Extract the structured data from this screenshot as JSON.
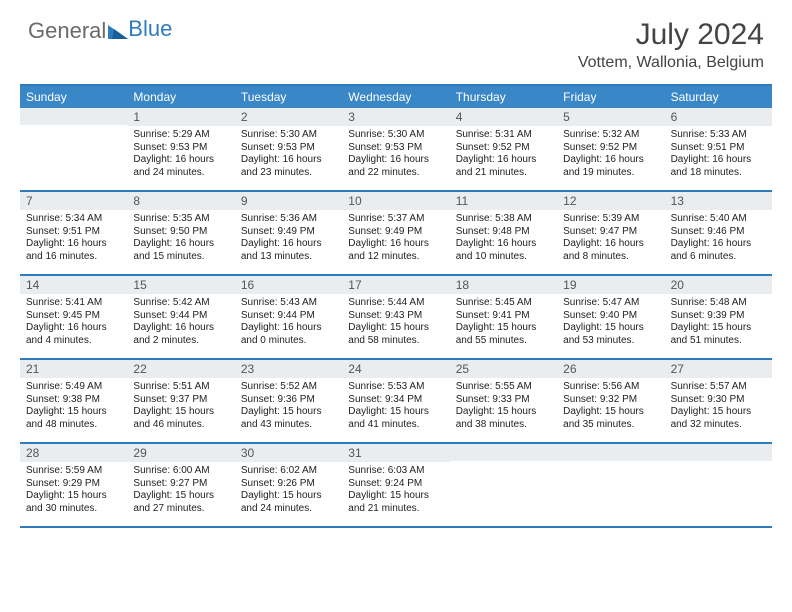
{
  "logo": {
    "text1": "General",
    "text2": "Blue"
  },
  "title": "July 2024",
  "location": "Vottem, Wallonia, Belgium",
  "colors": {
    "header_bg": "#3a87c7",
    "border": "#2e7cc0",
    "daynum_bg": "#e9edf0",
    "logo_gray": "#6a6a6a",
    "logo_blue": "#2e7cc0"
  },
  "day_labels": [
    "Sunday",
    "Monday",
    "Tuesday",
    "Wednesday",
    "Thursday",
    "Friday",
    "Saturday"
  ],
  "weeks": [
    [
      null,
      {
        "n": "1",
        "sr": "5:29 AM",
        "ss": "9:53 PM",
        "dl": "16 hours and 24 minutes."
      },
      {
        "n": "2",
        "sr": "5:30 AM",
        "ss": "9:53 PM",
        "dl": "16 hours and 23 minutes."
      },
      {
        "n": "3",
        "sr": "5:30 AM",
        "ss": "9:53 PM",
        "dl": "16 hours and 22 minutes."
      },
      {
        "n": "4",
        "sr": "5:31 AM",
        "ss": "9:52 PM",
        "dl": "16 hours and 21 minutes."
      },
      {
        "n": "5",
        "sr": "5:32 AM",
        "ss": "9:52 PM",
        "dl": "16 hours and 19 minutes."
      },
      {
        "n": "6",
        "sr": "5:33 AM",
        "ss": "9:51 PM",
        "dl": "16 hours and 18 minutes."
      }
    ],
    [
      {
        "n": "7",
        "sr": "5:34 AM",
        "ss": "9:51 PM",
        "dl": "16 hours and 16 minutes."
      },
      {
        "n": "8",
        "sr": "5:35 AM",
        "ss": "9:50 PM",
        "dl": "16 hours and 15 minutes."
      },
      {
        "n": "9",
        "sr": "5:36 AM",
        "ss": "9:49 PM",
        "dl": "16 hours and 13 minutes."
      },
      {
        "n": "10",
        "sr": "5:37 AM",
        "ss": "9:49 PM",
        "dl": "16 hours and 12 minutes."
      },
      {
        "n": "11",
        "sr": "5:38 AM",
        "ss": "9:48 PM",
        "dl": "16 hours and 10 minutes."
      },
      {
        "n": "12",
        "sr": "5:39 AM",
        "ss": "9:47 PM",
        "dl": "16 hours and 8 minutes."
      },
      {
        "n": "13",
        "sr": "5:40 AM",
        "ss": "9:46 PM",
        "dl": "16 hours and 6 minutes."
      }
    ],
    [
      {
        "n": "14",
        "sr": "5:41 AM",
        "ss": "9:45 PM",
        "dl": "16 hours and 4 minutes."
      },
      {
        "n": "15",
        "sr": "5:42 AM",
        "ss": "9:44 PM",
        "dl": "16 hours and 2 minutes."
      },
      {
        "n": "16",
        "sr": "5:43 AM",
        "ss": "9:44 PM",
        "dl": "16 hours and 0 minutes."
      },
      {
        "n": "17",
        "sr": "5:44 AM",
        "ss": "9:43 PM",
        "dl": "15 hours and 58 minutes."
      },
      {
        "n": "18",
        "sr": "5:45 AM",
        "ss": "9:41 PM",
        "dl": "15 hours and 55 minutes."
      },
      {
        "n": "19",
        "sr": "5:47 AM",
        "ss": "9:40 PM",
        "dl": "15 hours and 53 minutes."
      },
      {
        "n": "20",
        "sr": "5:48 AM",
        "ss": "9:39 PM",
        "dl": "15 hours and 51 minutes."
      }
    ],
    [
      {
        "n": "21",
        "sr": "5:49 AM",
        "ss": "9:38 PM",
        "dl": "15 hours and 48 minutes."
      },
      {
        "n": "22",
        "sr": "5:51 AM",
        "ss": "9:37 PM",
        "dl": "15 hours and 46 minutes."
      },
      {
        "n": "23",
        "sr": "5:52 AM",
        "ss": "9:36 PM",
        "dl": "15 hours and 43 minutes."
      },
      {
        "n": "24",
        "sr": "5:53 AM",
        "ss": "9:34 PM",
        "dl": "15 hours and 41 minutes."
      },
      {
        "n": "25",
        "sr": "5:55 AM",
        "ss": "9:33 PM",
        "dl": "15 hours and 38 minutes."
      },
      {
        "n": "26",
        "sr": "5:56 AM",
        "ss": "9:32 PM",
        "dl": "15 hours and 35 minutes."
      },
      {
        "n": "27",
        "sr": "5:57 AM",
        "ss": "9:30 PM",
        "dl": "15 hours and 32 minutes."
      }
    ],
    [
      {
        "n": "28",
        "sr": "5:59 AM",
        "ss": "9:29 PM",
        "dl": "15 hours and 30 minutes."
      },
      {
        "n": "29",
        "sr": "6:00 AM",
        "ss": "9:27 PM",
        "dl": "15 hours and 27 minutes."
      },
      {
        "n": "30",
        "sr": "6:02 AM",
        "ss": "9:26 PM",
        "dl": "15 hours and 24 minutes."
      },
      {
        "n": "31",
        "sr": "6:03 AM",
        "ss": "9:24 PM",
        "dl": "15 hours and 21 minutes."
      },
      null,
      null,
      null
    ]
  ],
  "labels": {
    "sunrise": "Sunrise:",
    "sunset": "Sunset:",
    "daylight": "Daylight:"
  }
}
